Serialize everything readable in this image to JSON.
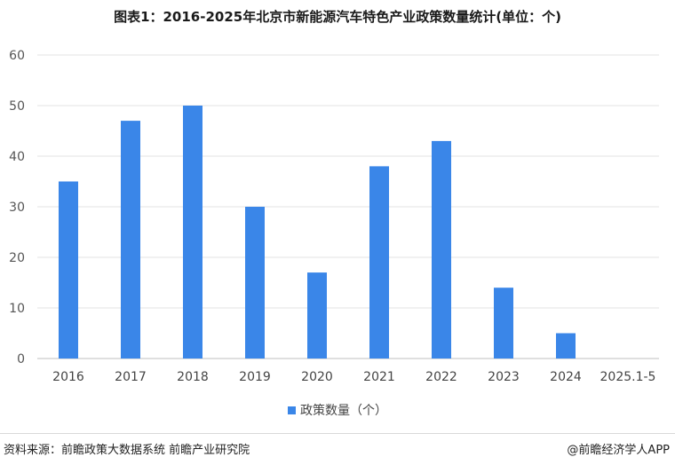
{
  "title": "图表1：2016-2025年北京市新能源汽车特色产业政策数量统计(单位：个)",
  "chart_data": {
    "type": "bar",
    "categories": [
      "2016",
      "2017",
      "2018",
      "2019",
      "2020",
      "2021",
      "2022",
      "2023",
      "2024",
      "2025.1-5"
    ],
    "series": [
      {
        "name": "政策数量（个）",
        "values": [
          35,
          47,
          50,
          30,
          17,
          38,
          43,
          14,
          5,
          0
        ]
      }
    ],
    "ylim": [
      0,
      60
    ],
    "yticks": [
      0,
      10,
      20,
      30,
      40,
      50,
      60
    ],
    "grid": true,
    "legend": "bottom",
    "bar_color": "#3a86e8"
  },
  "footer": {
    "source": "资料来源：前瞻政策大数据系统 前瞻产业研究院",
    "brand": "@前瞻经济学人APP"
  }
}
